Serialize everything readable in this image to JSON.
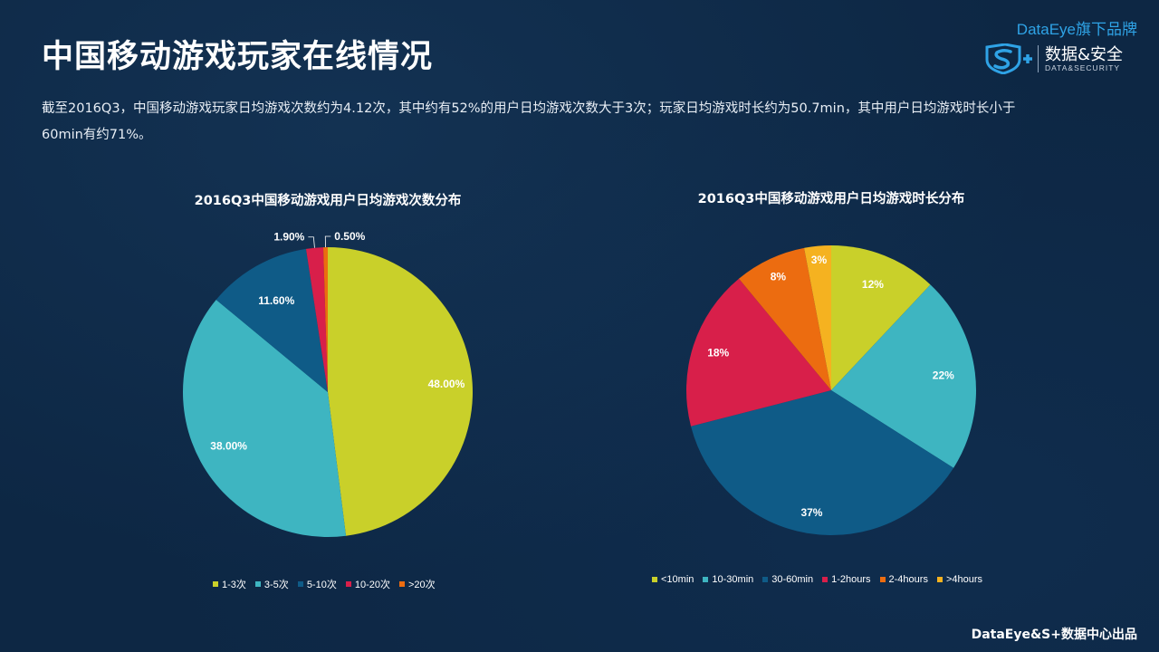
{
  "page": {
    "title": "中国移动游戏玩家在线情况",
    "summary": "截至2016Q3，中国移动游戏玩家日均游戏次数约为4.12次，其中约有52%的用户日均游戏次数大于3次；玩家日均游戏时长约为50.7min，其中用户日均游戏时长小于60min有约71%。",
    "footer": "DataEye&S+数据中心出品"
  },
  "brand": {
    "top_label": "DataEye旗下品牌",
    "logo_name": "s-plus-shield-logo",
    "name_cn": "数据&安全",
    "name_en": "DATA&SECURITY",
    "accent_color": "#2fa3e6"
  },
  "chart_data": [
    {
      "type": "pie",
      "title": "2016Q3中国移动游戏用户日均游戏次数分布",
      "categories": [
        "1-3次",
        "3-5次",
        "5-10次",
        "10-20次",
        ">20次"
      ],
      "values": [
        48.0,
        38.0,
        11.6,
        1.9,
        0.5
      ],
      "labels": [
        "48.00%",
        "38.00%",
        "11.60%",
        "1.90%",
        "0.50%"
      ],
      "colors": [
        "#c9d02a",
        "#3eb5c1",
        "#0f5b87",
        "#d81f4a",
        "#ec6c10"
      ],
      "legend_position": "bottom"
    },
    {
      "type": "pie",
      "title": "2016Q3中国移动游戏用户日均游戏时长分布",
      "categories": [
        "<10min",
        "10-30min",
        "30-60min",
        "1-2hours",
        "2-4hours",
        ">4hours"
      ],
      "values": [
        12,
        22,
        37,
        18,
        8,
        3
      ],
      "labels": [
        "12%",
        "22%",
        "37%",
        "18%",
        "8%",
        "3%"
      ],
      "colors": [
        "#c9d02a",
        "#3eb5c1",
        "#0f5b87",
        "#d81f4a",
        "#ec6c10",
        "#f5b220"
      ],
      "legend_position": "bottom"
    }
  ]
}
